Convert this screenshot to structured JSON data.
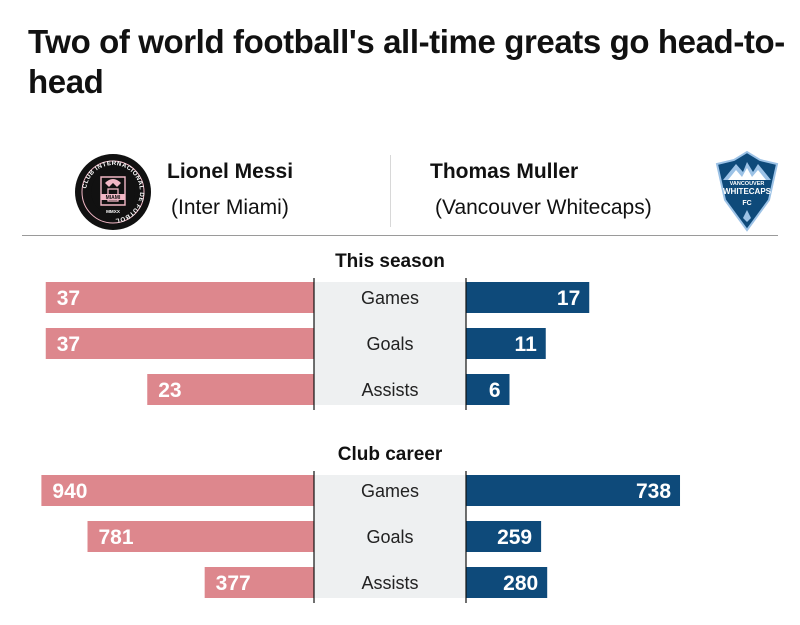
{
  "title": "Two of world football's all-time greats go head-to-head",
  "players": {
    "left": {
      "name": "Lionel Messi",
      "club": "(Inter Miami)",
      "logo_text": {
        "ring": "CLUB INTERNACIONAL DE FUTBOL",
        "center": "MIAMI",
        "bottom": "MMXX"
      },
      "color": "#dd878d"
    },
    "right": {
      "name": "Thomas Muller",
      "club": "(Vancouver Whitecaps)",
      "logo_text": {
        "top": "VANCOUVER",
        "middle": "WHITECAPS",
        "bottom": "FC"
      },
      "color": "#0e4a7a"
    }
  },
  "chart_data": {
    "type": "bar",
    "orientation": "horizontal-diverging",
    "series": [
      {
        "name": "Lionel Messi",
        "color": "#dd878d"
      },
      {
        "name": "Thomas Muller",
        "color": "#0e4a7a"
      }
    ],
    "panels": [
      {
        "title": "This season",
        "categories": [
          "Games",
          "Goals",
          "Assists"
        ],
        "left_values": [
          37,
          37,
          23
        ],
        "right_values": [
          17,
          11,
          6
        ],
        "max": 40
      },
      {
        "title": "Club career",
        "categories": [
          "Games",
          "Goals",
          "Assists"
        ],
        "left_values": [
          940,
          781,
          377
        ],
        "right_values": [
          738,
          259,
          280
        ],
        "max": 1000
      }
    ]
  }
}
